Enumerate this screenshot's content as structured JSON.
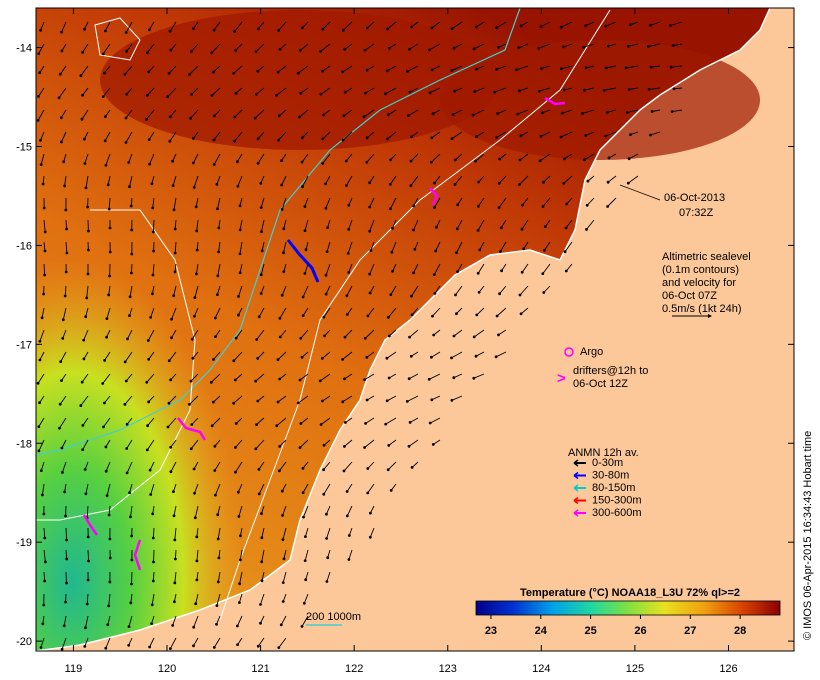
{
  "map": {
    "lon_range": [
      118.6,
      126.7
    ],
    "lat_range": [
      -20.1,
      -13.6
    ],
    "x_ticks": [
      "119",
      "120",
      "121",
      "122",
      "123",
      "124",
      "125",
      "126"
    ],
    "y_ticks": [
      "-14",
      "-15",
      "-16",
      "-17",
      "-18",
      "-19",
      "-20"
    ],
    "date": "06-Oct-2013",
    "time": "07:32Z",
    "altimetric_text": [
      "Altimetric sealevel",
      "(0.1m contours)",
      "and velocity for",
      "06-Oct 07Z",
      "0.5m/s (1kt 24h)"
    ],
    "argo_label": "Argo",
    "drifters_text": [
      "drifters@12h to",
      "06-Oct 12Z"
    ],
    "anmn_title": "ANMN 12h av.",
    "anmn_legend": [
      {
        "label": "0-30m",
        "color": "#000000"
      },
      {
        "label": "30-80m",
        "color": "#0000ff"
      },
      {
        "label": "80-150m",
        "color": "#00cccc"
      },
      {
        "label": "150-300m",
        "color": "#ff0000"
      },
      {
        "label": "300-600m",
        "color": "#ff00ff"
      }
    ],
    "depth_legend": "200  1000m",
    "colorbar": {
      "title": "Temperature (°C) NOAA18_L3U 72% ql>=2",
      "ticks": [
        "23",
        "24",
        "25",
        "26",
        "27",
        "28"
      ],
      "min": 22.7,
      "max": 28.8
    },
    "credit": "© IMOS 06-Apr-2015 16:34:43 Hobart time",
    "colors": {
      "land": "#fcc89a",
      "hot": "#a01a00",
      "warm": "#e88a10",
      "mid": "#d4d430",
      "cool": "#30c070",
      "coast": "#ffffff",
      "contour_200": "#40d0d0",
      "argo": "#ff00ff",
      "arrow": "#000000"
    }
  }
}
